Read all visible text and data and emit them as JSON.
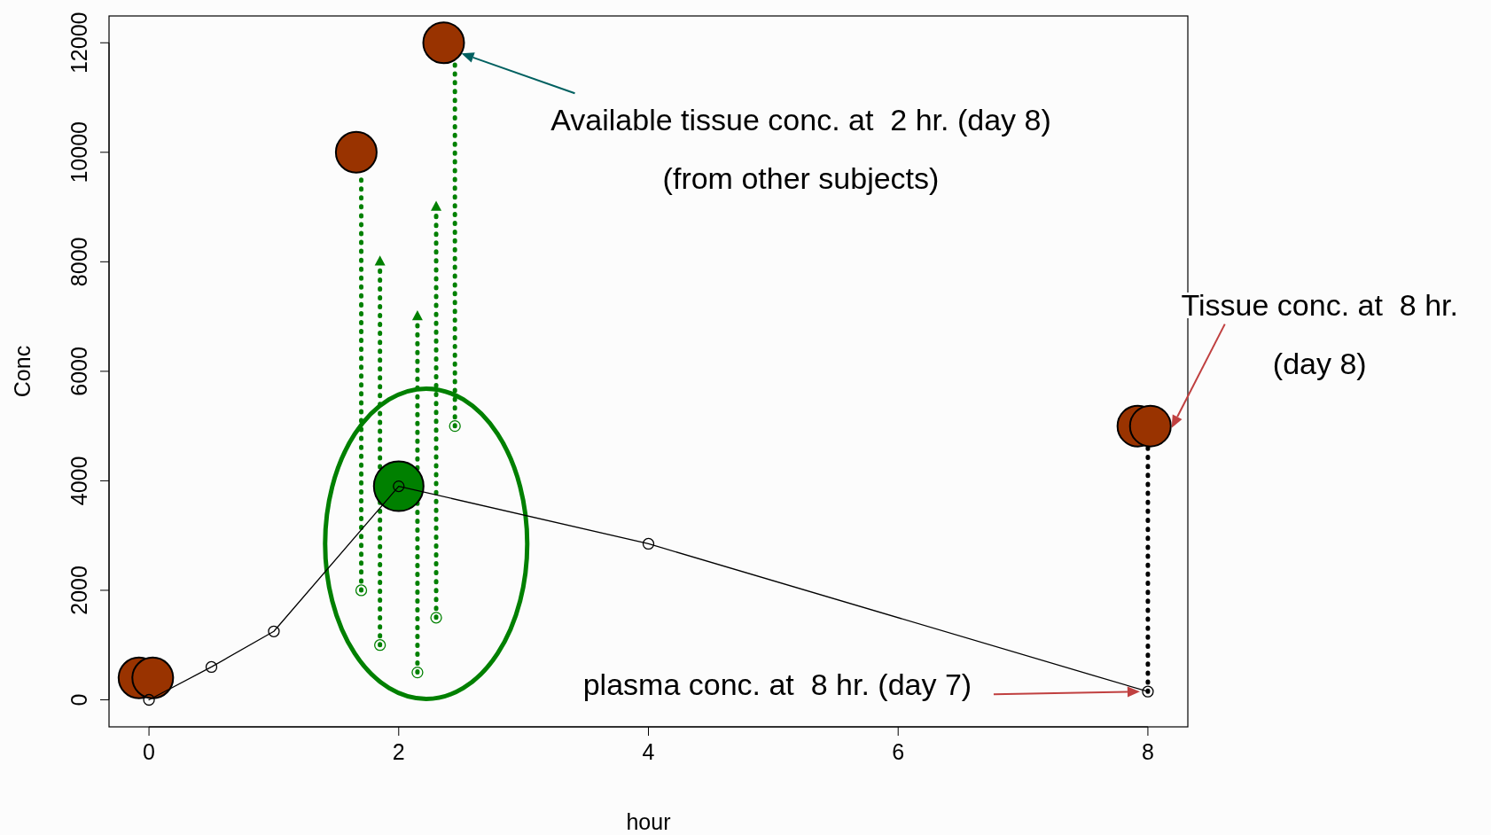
{
  "chart_data": {
    "type": "scatter",
    "xlabel": "hour",
    "ylabel": "Conc",
    "xlim": [
      -0.32,
      8.32
    ],
    "ylim": [
      -494,
      12490
    ],
    "xticks": [
      0,
      2,
      4,
      6,
      8
    ],
    "yticks": [
      0,
      2000,
      4000,
      6000,
      8000,
      10000,
      12000
    ],
    "series": [
      {
        "type": "line",
        "line_style": "dotted",
        "color": "#008000",
        "x": [
          1.7,
          1.7
        ],
        "values": [
          2000,
          9500
        ]
      },
      {
        "type": "line",
        "line_style": "dotted",
        "color": "#008000",
        "x": [
          1.85,
          1.85
        ],
        "values": [
          1000,
          8000
        ]
      },
      {
        "type": "line",
        "line_style": "dotted",
        "color": "#008000",
        "x": [
          2.15,
          2.15
        ],
        "values": [
          500,
          7000
        ]
      },
      {
        "type": "line",
        "line_style": "dotted",
        "color": "#008000",
        "x": [
          2.3,
          2.3
        ],
        "values": [
          1500,
          9000
        ]
      },
      {
        "type": "line",
        "line_style": "dotted",
        "color": "#008000",
        "x": [
          2.45,
          2.45
        ],
        "values": [
          5000,
          11600
        ]
      },
      {
        "type": "line",
        "line_style": "dotted",
        "color": "#000000",
        "x": [
          8,
          8
        ],
        "values": [
          150,
          4600
        ]
      },
      {
        "marker": "circle",
        "color": "#008000",
        "x": [
          1.7,
          1.85,
          2.15,
          2.3,
          2.45
        ],
        "values": [
          2000,
          1000,
          500,
          1500,
          5000
        ]
      },
      {
        "marker": "triangle",
        "color": "#008000",
        "x": [
          1.85,
          2.15,
          2.3
        ],
        "values": [
          8000,
          7000,
          9000
        ]
      },
      {
        "marker": "circle",
        "color": "#993300",
        "x": [
          -0.08,
          0.03,
          1.66,
          2.36,
          7.92,
          8.02
        ],
        "values": [
          400,
          400,
          10000,
          12000,
          5000,
          5000
        ]
      },
      {
        "marker": "circle",
        "color": "#008000",
        "x": [
          2
        ],
        "values": [
          3900
        ]
      },
      {
        "type": "line",
        "line_style": "solid",
        "marker": "circle",
        "color": "#000000",
        "x": [
          0,
          0.5,
          1,
          2,
          4,
          8
        ],
        "values": [
          0,
          600,
          1250,
          3900,
          2850,
          150
        ]
      }
    ],
    "annotations": [
      "Available tissue conc. at  2 hr. (day 8)\n(from other subjects)",
      {
        "text": "Tissue conc. at  8 hr.\n(day 8)",
        "x": 8.02,
        "y": 5000
      },
      "plasma conc. at  8 hr. (day 7)"
    ]
  }
}
